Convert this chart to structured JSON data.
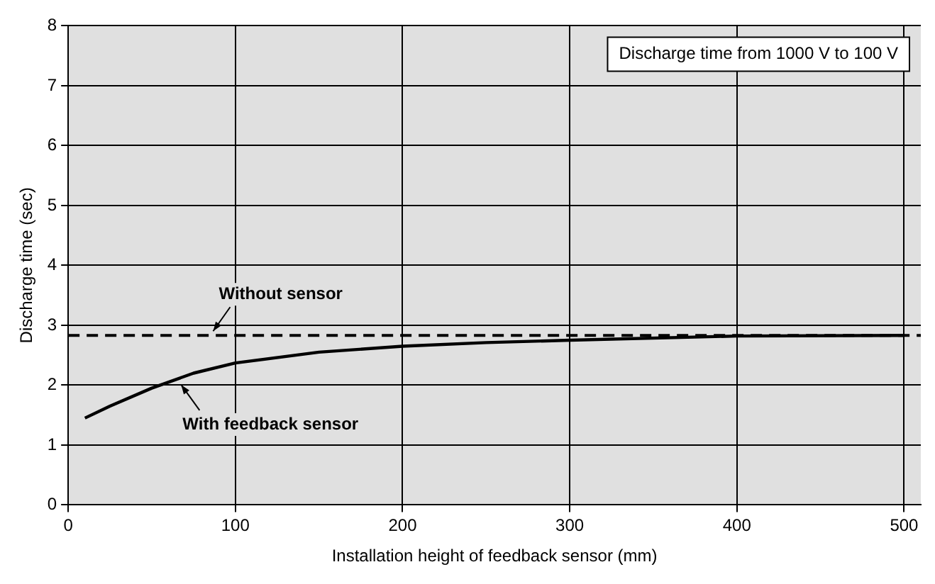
{
  "chart_data": {
    "type": "line",
    "xlabel": "Installation height of feedback sensor (mm)",
    "ylabel": "Discharge time (sec)",
    "series": [
      {
        "color": "#000000",
        "x": [
          10,
          25,
          50,
          75,
          100,
          150,
          200,
          250,
          300,
          400,
          500
        ],
        "values": [
          1.45,
          1.65,
          1.95,
          2.2,
          2.37,
          2.55,
          2.65,
          2.71,
          2.75,
          2.82,
          2.83
        ]
      }
    ],
    "xlim": [
      0,
      510
    ],
    "xticks": [
      0,
      100,
      200,
      300,
      400,
      500
    ],
    "ylim": [
      0,
      8
    ],
    "yticks": [
      0,
      1,
      2,
      3,
      4,
      5,
      6,
      7,
      8
    ],
    "ref_lines": [
      {
        "axis": "y",
        "value": 2.83,
        "color": "#000000",
        "line_style": "dashed"
      }
    ],
    "annotations": [
      {
        "text": "Without sensor",
        "x": 85,
        "y": 2.83
      },
      {
        "text": "With feedback sensor",
        "x": 65,
        "y": 2.1
      },
      "Discharge time from 1000 V to 100 V"
    ],
    "grid": true,
    "legend": false,
    "marker": "none",
    "line_style": "solid"
  }
}
